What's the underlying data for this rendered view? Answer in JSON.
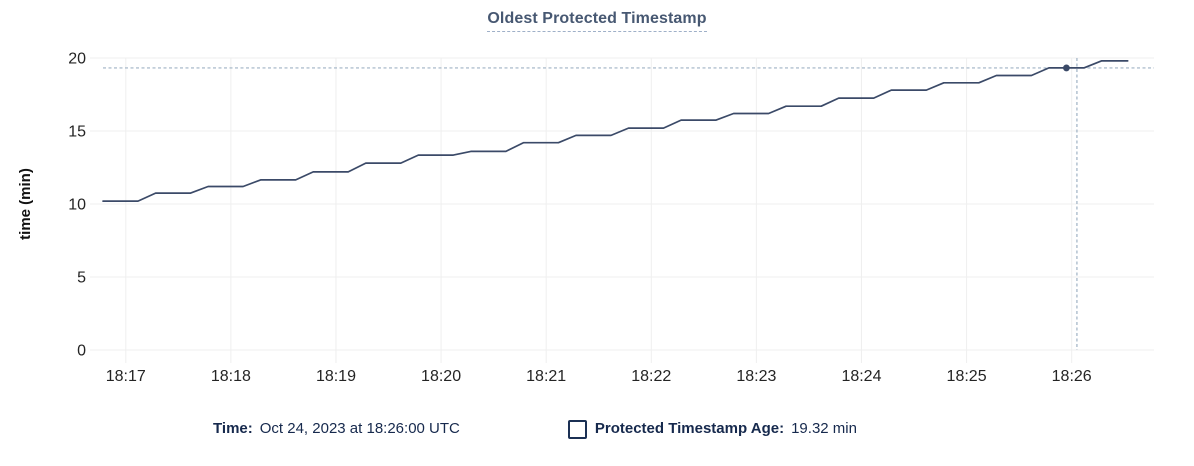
{
  "title": "Oldest Protected Timestamp",
  "colors": {
    "line": "#3b4a68",
    "dot": "#3b4a68",
    "grid": "#efefef",
    "crosshair": "#9fb2c4",
    "axis_text": "#242424",
    "axis_label_text": "#111111",
    "title_text": "#475872",
    "title_underline": "#9fb0c8",
    "legend_text": "#16294d"
  },
  "chart_data": {
    "type": "line",
    "title": "Oldest Protected Timestamp",
    "xlabel": "",
    "ylabel": "time (min)",
    "ylim": [
      0,
      20
    ],
    "y_ticks": [
      0,
      5,
      10,
      15,
      20
    ],
    "grid": true,
    "x_domain_seconds": 600,
    "x_domain_note_start": "18:16:47",
    "x_ticks": [
      {
        "label": "18:17",
        "t": 13
      },
      {
        "label": "18:18",
        "t": 73
      },
      {
        "label": "18:19",
        "t": 133
      },
      {
        "label": "18:20",
        "t": 193
      },
      {
        "label": "18:21",
        "t": 253
      },
      {
        "label": "18:22",
        "t": 313
      },
      {
        "label": "18:23",
        "t": 373
      },
      {
        "label": "18:24",
        "t": 433
      },
      {
        "label": "18:25",
        "t": 493
      },
      {
        "label": "18:26",
        "t": 553
      }
    ],
    "series": [
      {
        "name": "Protected Timestamp Age",
        "unit": "min",
        "points": [
          [
            0,
            10.2
          ],
          [
            20,
            10.2
          ],
          [
            30,
            10.75
          ],
          [
            50,
            10.75
          ],
          [
            60,
            11.2
          ],
          [
            80,
            11.2
          ],
          [
            90,
            11.65
          ],
          [
            110,
            11.65
          ],
          [
            120,
            12.2
          ],
          [
            140,
            12.2
          ],
          [
            150,
            12.8
          ],
          [
            170,
            12.8
          ],
          [
            180,
            13.35
          ],
          [
            200,
            13.35
          ],
          [
            210,
            13.6
          ],
          [
            230,
            13.6
          ],
          [
            240,
            14.2
          ],
          [
            260,
            14.2
          ],
          [
            270,
            14.7
          ],
          [
            290,
            14.7
          ],
          [
            300,
            15.2
          ],
          [
            320,
            15.2
          ],
          [
            330,
            15.75
          ],
          [
            350,
            15.75
          ],
          [
            360,
            16.2
          ],
          [
            380,
            16.2
          ],
          [
            390,
            16.7
          ],
          [
            410,
            16.7
          ],
          [
            420,
            17.25
          ],
          [
            440,
            17.25
          ],
          [
            450,
            17.8
          ],
          [
            470,
            17.8
          ],
          [
            480,
            18.3
          ],
          [
            500,
            18.3
          ],
          [
            510,
            18.8
          ],
          [
            530,
            18.8
          ],
          [
            540,
            19.32
          ],
          [
            560,
            19.32
          ],
          [
            570,
            19.8
          ],
          [
            585,
            19.8
          ]
        ]
      }
    ],
    "hover": {
      "crosshair_t": 556,
      "dot_t": 550,
      "value_min": 19.32
    }
  },
  "legend": {
    "time_label": "Time:",
    "time_value": "Oct 24, 2023 at 18:26:00 UTC",
    "series_label": "Protected Timestamp Age:",
    "series_value": "19.32 min"
  }
}
